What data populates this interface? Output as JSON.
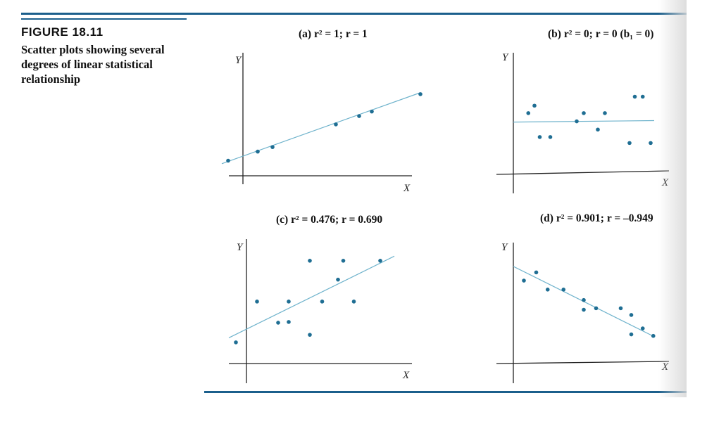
{
  "figure": {
    "number": "FIGURE 18.11",
    "caption": "Scatter plots showing several degrees of linear statistical relationship"
  },
  "colors": {
    "accent": "#1b5f8c",
    "point": "#1f6e93",
    "fit_line": "#6fb3cc",
    "axis": "#222222"
  },
  "chart_data": [
    {
      "id": "a",
      "type": "scatter",
      "title": "(a) r² = 1; r = 1",
      "xlabel": "X",
      "ylabel": "Y",
      "xlim": [
        -1,
        9
      ],
      "ylim": [
        -1,
        9
      ],
      "points": [
        {
          "x": -0.7,
          "y": 1.0
        },
        {
          "x": 0.7,
          "y": 1.6
        },
        {
          "x": 1.4,
          "y": 1.9
        },
        {
          "x": 4.4,
          "y": 3.4
        },
        {
          "x": 5.5,
          "y": 3.95
        },
        {
          "x": 6.1,
          "y": 4.25
        },
        {
          "x": 8.4,
          "y": 5.4
        }
      ],
      "fit_line": {
        "x": [
          -1,
          8.4
        ],
        "y": [
          0.8,
          5.5
        ]
      }
    },
    {
      "id": "b",
      "type": "scatter",
      "title": "(b) r² = 0; r = 0 (b₁ = 0)",
      "xlabel": "X",
      "ylabel": "Y",
      "xlim": [
        -1,
        9
      ],
      "ylim": [
        -1,
        9
      ],
      "points": [
        {
          "x": 0.85,
          "y": 4.1
        },
        {
          "x": 1.2,
          "y": 4.6
        },
        {
          "x": 1.5,
          "y": 2.5
        },
        {
          "x": 2.1,
          "y": 2.5
        },
        {
          "x": 3.6,
          "y": 3.55
        },
        {
          "x": 4.0,
          "y": 4.1
        },
        {
          "x": 4.8,
          "y": 3.0
        },
        {
          "x": 5.2,
          "y": 4.1
        },
        {
          "x": 6.6,
          "y": 2.1
        },
        {
          "x": 6.9,
          "y": 5.2
        },
        {
          "x": 7.35,
          "y": 5.2
        },
        {
          "x": 7.8,
          "y": 2.1
        }
      ],
      "fit_line": {
        "x": [
          0.0,
          8.0
        ],
        "y": [
          3.5,
          3.6
        ]
      }
    },
    {
      "id": "c",
      "type": "scatter",
      "title": "(c) r² = 0.476; r = 0.690",
      "xlabel": "X",
      "ylabel": "Y",
      "xlim": [
        -1,
        9
      ],
      "ylim": [
        -1,
        9
      ],
      "points": [
        {
          "x": -0.6,
          "y": 1.4
        },
        {
          "x": 0.6,
          "y": 4.1
        },
        {
          "x": 1.8,
          "y": 2.7
        },
        {
          "x": 2.4,
          "y": 2.75
        },
        {
          "x": 2.4,
          "y": 4.1
        },
        {
          "x": 3.6,
          "y": 1.9
        },
        {
          "x": 3.6,
          "y": 6.8
        },
        {
          "x": 4.3,
          "y": 4.1
        },
        {
          "x": 5.2,
          "y": 5.55
        },
        {
          "x": 5.5,
          "y": 6.8
        },
        {
          "x": 6.1,
          "y": 4.1
        },
        {
          "x": 7.6,
          "y": 6.8
        }
      ],
      "fit_line": {
        "x": [
          -1.0,
          8.4
        ],
        "y": [
          1.7,
          7.1
        ]
      }
    },
    {
      "id": "d",
      "type": "scatter",
      "title": "(d) r² = 0.901; r = –0.949",
      "xlabel": "X",
      "ylabel": "Y",
      "xlim": [
        -1,
        9
      ],
      "ylim": [
        -1,
        9
      ],
      "points": [
        {
          "x": 0.6,
          "y": 5.55
        },
        {
          "x": 1.3,
          "y": 6.1
        },
        {
          "x": 1.95,
          "y": 4.95
        },
        {
          "x": 2.85,
          "y": 4.95
        },
        {
          "x": 4.0,
          "y": 4.25
        },
        {
          "x": 4.0,
          "y": 3.6
        },
        {
          "x": 4.7,
          "y": 3.7
        },
        {
          "x": 6.1,
          "y": 3.7
        },
        {
          "x": 6.7,
          "y": 3.25
        },
        {
          "x": 6.7,
          "y": 1.95
        },
        {
          "x": 7.35,
          "y": 2.35
        },
        {
          "x": 7.95,
          "y": 1.85
        }
      ],
      "fit_line": {
        "x": [
          0.0,
          8.0
        ],
        "y": [
          6.5,
          1.8
        ]
      }
    }
  ]
}
